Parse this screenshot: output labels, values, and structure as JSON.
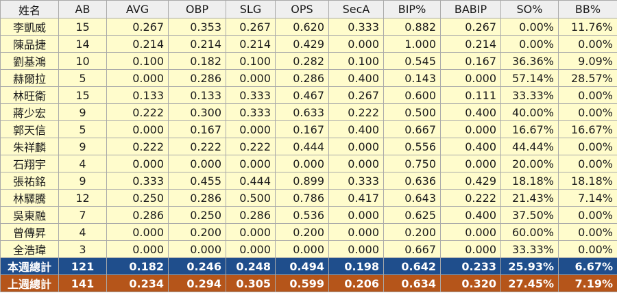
{
  "headers": [
    "姓名",
    "AB",
    "AVG",
    "OBP",
    "SLG",
    "OPS",
    "SecA",
    "BIP%",
    "BABIP",
    "SO%",
    "BB%"
  ],
  "rows": [
    [
      "李凱威",
      "15",
      "0.267",
      "0.353",
      "0.267",
      "0.620",
      "0.333",
      "0.882",
      "0.267",
      "0.00%",
      "11.76%"
    ],
    [
      "陳品捷",
      "14",
      "0.214",
      "0.214",
      "0.214",
      "0.429",
      "0.000",
      "1.000",
      "0.214",
      "0.00%",
      "0.00%"
    ],
    [
      "劉基鴻",
      "10",
      "0.100",
      "0.182",
      "0.100",
      "0.282",
      "0.100",
      "0.545",
      "0.167",
      "36.36%",
      "9.09%"
    ],
    [
      "赫爾拉",
      "5",
      "0.000",
      "0.286",
      "0.000",
      "0.286",
      "0.400",
      "0.143",
      "0.000",
      "57.14%",
      "28.57%"
    ],
    [
      "林旺衛",
      "15",
      "0.133",
      "0.133",
      "0.333",
      "0.467",
      "0.267",
      "0.600",
      "0.111",
      "33.33%",
      "0.00%"
    ],
    [
      "蔣少宏",
      "9",
      "0.222",
      "0.300",
      "0.333",
      "0.633",
      "0.222",
      "0.500",
      "0.400",
      "40.00%",
      "0.00%"
    ],
    [
      "郭天信",
      "5",
      "0.000",
      "0.167",
      "0.000",
      "0.167",
      "0.400",
      "0.667",
      "0.000",
      "16.67%",
      "16.67%"
    ],
    [
      "朱祥麟",
      "9",
      "0.222",
      "0.222",
      "0.222",
      "0.444",
      "0.000",
      "0.556",
      "0.400",
      "44.44%",
      "0.00%"
    ],
    [
      "石翔宇",
      "4",
      "0.000",
      "0.000",
      "0.000",
      "0.000",
      "0.000",
      "0.750",
      "0.000",
      "20.00%",
      "0.00%"
    ],
    [
      "張祐銘",
      "9",
      "0.333",
      "0.455",
      "0.444",
      "0.899",
      "0.333",
      "0.636",
      "0.429",
      "18.18%",
      "18.18%"
    ],
    [
      "林驛騰",
      "12",
      "0.250",
      "0.286",
      "0.500",
      "0.786",
      "0.417",
      "0.643",
      "0.222",
      "21.43%",
      "7.14%"
    ],
    [
      "吳東融",
      "7",
      "0.286",
      "0.250",
      "0.286",
      "0.536",
      "0.000",
      "0.625",
      "0.400",
      "37.50%",
      "0.00%"
    ],
    [
      "曾傳昇",
      "4",
      "0.000",
      "0.200",
      "0.000",
      "0.200",
      "0.000",
      "0.200",
      "0.000",
      "60.00%",
      "0.00%"
    ],
    [
      "全浩瑋",
      "3",
      "0.000",
      "0.000",
      "0.000",
      "0.000",
      "0.000",
      "0.667",
      "0.000",
      "33.33%",
      "0.00%"
    ]
  ],
  "summary_rows": [
    {
      "kind": "week",
      "cells": [
        "本週總計",
        "121",
        "0.182",
        "0.246",
        "0.248",
        "0.494",
        "0.198",
        "0.642",
        "0.233",
        "25.93%",
        "6.67%"
      ]
    },
    {
      "kind": "lastweek",
      "cells": [
        "上週總計",
        "141",
        "0.234",
        "0.294",
        "0.305",
        "0.599",
        "0.206",
        "0.634",
        "0.320",
        "27.45%",
        "7.19%"
      ]
    }
  ],
  "colors": {
    "row_bg": "#fffccc",
    "header_bg": "#efefef",
    "week_total_bg": "#1f4e8c",
    "lastweek_total_bg": "#b5551a"
  }
}
